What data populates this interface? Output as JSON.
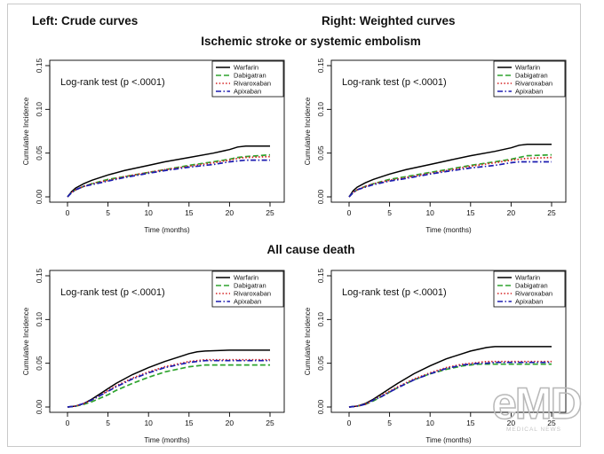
{
  "header": {
    "left": "Left: Crude curves",
    "right": "Right: Weighted curves"
  },
  "titles": {
    "top": "Ischemic stroke or systemic embolism",
    "bottom": "All cause death"
  },
  "watermark": {
    "letters": "eMD",
    "tag": "MEDICAL NEWS"
  },
  "style": {
    "series_colors": {
      "Warfarin": "#000000",
      "Dabigatran": "#2ea42e",
      "Rivaroxaban": "#d42020",
      "Apixaban": "#1c1cb0"
    },
    "series_dash": {
      "Warfarin": "",
      "Dabigatran": "6 3",
      "Rivaroxaban": "1.5 2.2",
      "Apixaban": "6 2.5 1.5 2.5"
    }
  },
  "chart_data": [
    {
      "type": "line",
      "panel": "top-left",
      "xlabel": "Time (months)",
      "ylabel": "Cumulative Incidence",
      "xlim": [
        0,
        25
      ],
      "ylim": [
        0,
        0.15
      ],
      "xticks": [
        "0",
        "5",
        "10",
        "15",
        "20",
        "25"
      ],
      "yticks": [
        "0.00",
        "0.05",
        "0.10",
        "0.15"
      ],
      "annotation": "Log-rank test (p <.0001)",
      "legend_position": "top-right",
      "legend": [
        "Warfarin",
        "Dabigatran",
        "Rivaroxaban",
        "Apixaban"
      ],
      "x": [
        0,
        0.5,
        1,
        2,
        3,
        5,
        7,
        10,
        12,
        15,
        18,
        20,
        21,
        22,
        25
      ],
      "series": [
        {
          "name": "Warfarin",
          "values": [
            0,
            0.006,
            0.01,
            0.015,
            0.019,
            0.025,
            0.03,
            0.036,
            0.04,
            0.045,
            0.05,
            0.054,
            0.057,
            0.058,
            0.058
          ]
        },
        {
          "name": "Dabigatran",
          "values": [
            0,
            0.005,
            0.008,
            0.012,
            0.015,
            0.02,
            0.023,
            0.028,
            0.031,
            0.036,
            0.04,
            0.043,
            0.045,
            0.046,
            0.048
          ]
        },
        {
          "name": "Rivaroxaban",
          "values": [
            0,
            0.005,
            0.008,
            0.012,
            0.015,
            0.019,
            0.023,
            0.028,
            0.031,
            0.035,
            0.039,
            0.042,
            0.044,
            0.045,
            0.046
          ]
        },
        {
          "name": "Apixaban",
          "values": [
            0,
            0.005,
            0.008,
            0.012,
            0.014,
            0.018,
            0.022,
            0.027,
            0.03,
            0.034,
            0.037,
            0.04,
            0.041,
            0.042,
            0.042
          ]
        }
      ]
    },
    {
      "type": "line",
      "panel": "top-right",
      "xlabel": "Time (months)",
      "ylabel": "Cumulative Incidence",
      "xlim": [
        0,
        25
      ],
      "ylim": [
        0,
        0.15
      ],
      "xticks": [
        "0",
        "5",
        "10",
        "15",
        "20",
        "25"
      ],
      "yticks": [
        "0.00",
        "0.05",
        "0.10",
        "0.15"
      ],
      "annotation": "Log-rank test (p <.0001)",
      "legend_position": "top-right",
      "legend": [
        "Warfarin",
        "Dabigatran",
        "Rivaroxaban",
        "Apixaban"
      ],
      "x": [
        0,
        0.5,
        1,
        2,
        3,
        5,
        7,
        10,
        12,
        15,
        18,
        20,
        21,
        22,
        25
      ],
      "series": [
        {
          "name": "Warfarin",
          "values": [
            0,
            0.007,
            0.011,
            0.016,
            0.02,
            0.026,
            0.031,
            0.037,
            0.041,
            0.047,
            0.052,
            0.056,
            0.059,
            0.06,
            0.06
          ]
        },
        {
          "name": "Dabigatran",
          "values": [
            0,
            0.005,
            0.008,
            0.012,
            0.015,
            0.02,
            0.023,
            0.028,
            0.031,
            0.036,
            0.04,
            0.043,
            0.045,
            0.047,
            0.048
          ]
        },
        {
          "name": "Rivaroxaban",
          "values": [
            0,
            0.005,
            0.008,
            0.012,
            0.015,
            0.019,
            0.022,
            0.027,
            0.03,
            0.035,
            0.039,
            0.042,
            0.043,
            0.044,
            0.045
          ]
        },
        {
          "name": "Apixaban",
          "values": [
            0,
            0.005,
            0.008,
            0.011,
            0.014,
            0.018,
            0.021,
            0.026,
            0.029,
            0.033,
            0.036,
            0.039,
            0.04,
            0.04,
            0.04
          ]
        }
      ]
    },
    {
      "type": "line",
      "panel": "bottom-left",
      "xlabel": "Time (months)",
      "ylabel": "Cumulative Incidence",
      "xlim": [
        0,
        25
      ],
      "ylim": [
        0,
        0.15
      ],
      "xticks": [
        "0",
        "5",
        "10",
        "15",
        "20",
        "25"
      ],
      "yticks": [
        "0.00",
        "0.05",
        "0.10",
        "0.15"
      ],
      "annotation": "Log-rank test (p <.0001)",
      "legend_position": "top-right",
      "legend": [
        "Warfarin",
        "Dabigatran",
        "Rivaroxaban",
        "Apixaban"
      ],
      "x": [
        0,
        1,
        2,
        3,
        4,
        5,
        6,
        8,
        10,
        12,
        14,
        15,
        16,
        17,
        20,
        25
      ],
      "series": [
        {
          "name": "Warfarin",
          "values": [
            0,
            0.001,
            0.004,
            0.009,
            0.015,
            0.021,
            0.027,
            0.037,
            0.045,
            0.052,
            0.058,
            0.061,
            0.063,
            0.064,
            0.065,
            0.065
          ]
        },
        {
          "name": "Dabigatran",
          "values": [
            0,
            0.001,
            0.003,
            0.006,
            0.01,
            0.014,
            0.019,
            0.027,
            0.034,
            0.04,
            0.044,
            0.046,
            0.047,
            0.048,
            0.048,
            0.048
          ]
        },
        {
          "name": "Rivaroxaban",
          "values": [
            0,
            0.001,
            0.004,
            0.008,
            0.013,
            0.019,
            0.024,
            0.033,
            0.04,
            0.046,
            0.05,
            0.052,
            0.053,
            0.054,
            0.054,
            0.054
          ]
        },
        {
          "name": "Apixaban",
          "values": [
            0,
            0.001,
            0.004,
            0.008,
            0.013,
            0.018,
            0.023,
            0.032,
            0.039,
            0.045,
            0.049,
            0.051,
            0.052,
            0.053,
            0.053,
            0.053
          ]
        }
      ]
    },
    {
      "type": "line",
      "panel": "bottom-right",
      "xlabel": "Time (months)",
      "ylabel": "Cumulative Incidence",
      "xlim": [
        0,
        25
      ],
      "ylim": [
        0,
        0.15
      ],
      "xticks": [
        "0",
        "5",
        "10",
        "15",
        "20",
        "25"
      ],
      "yticks": [
        "0.00",
        "0.05",
        "0.10",
        "0.15"
      ],
      "annotation": "Log-rank test (p <.0001)",
      "legend_position": "top-right",
      "legend": [
        "Warfarin",
        "Dabigatran",
        "Rivaroxaban",
        "Apixaban"
      ],
      "x": [
        0,
        1,
        2,
        3,
        4,
        5,
        6,
        8,
        10,
        12,
        14,
        15,
        16,
        17,
        18,
        20,
        25
      ],
      "series": [
        {
          "name": "Warfarin",
          "values": [
            0,
            0.001,
            0.004,
            0.009,
            0.015,
            0.021,
            0.027,
            0.038,
            0.047,
            0.055,
            0.061,
            0.064,
            0.066,
            0.068,
            0.069,
            0.069,
            0.069
          ]
        },
        {
          "name": "Dabigatran",
          "values": [
            0,
            0.001,
            0.003,
            0.007,
            0.012,
            0.017,
            0.022,
            0.031,
            0.038,
            0.043,
            0.047,
            0.048,
            0.049,
            0.049,
            0.049,
            0.049,
            0.049
          ]
        },
        {
          "name": "Rivaroxaban",
          "values": [
            0,
            0.001,
            0.003,
            0.008,
            0.013,
            0.018,
            0.023,
            0.032,
            0.039,
            0.045,
            0.049,
            0.05,
            0.051,
            0.052,
            0.052,
            0.052,
            0.052
          ]
        },
        {
          "name": "Apixaban",
          "values": [
            0,
            0.001,
            0.003,
            0.008,
            0.012,
            0.017,
            0.022,
            0.031,
            0.038,
            0.044,
            0.048,
            0.049,
            0.05,
            0.05,
            0.051,
            0.051,
            0.051
          ]
        }
      ]
    }
  ]
}
